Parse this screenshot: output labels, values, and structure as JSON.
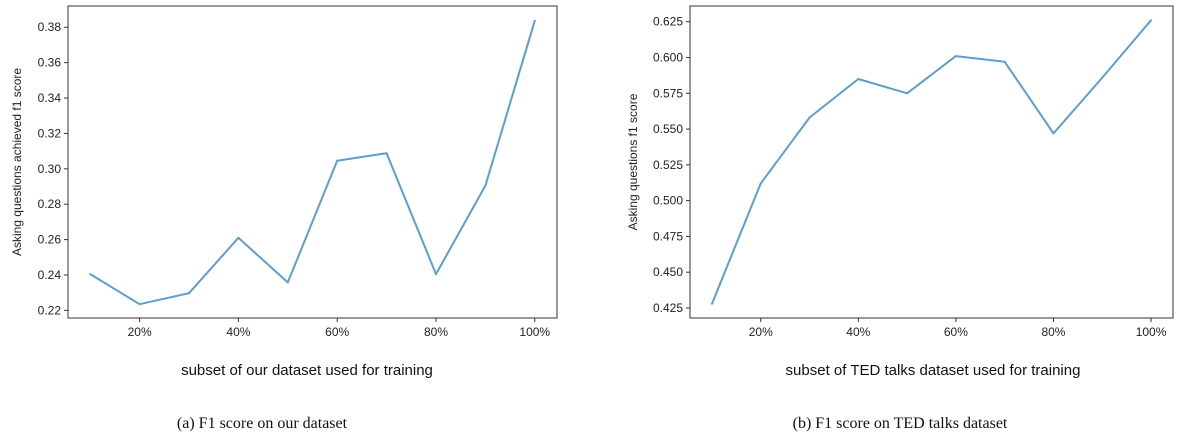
{
  "chart_data": [
    {
      "type": "line",
      "x": [
        10,
        20,
        30,
        40,
        50,
        60,
        70,
        80,
        90,
        100
      ],
      "series": [
        {
          "values": [
            0.2405,
            0.2235,
            0.2297,
            0.261,
            0.2358,
            0.3045,
            0.3088,
            0.2405,
            0.2905,
            0.3837
          ]
        }
      ],
      "xticks": [
        20,
        40,
        60,
        80,
        100
      ],
      "xtick_labels": [
        "20%",
        "40%",
        "60%",
        "80%",
        "100%"
      ],
      "yticks": [
        0.22,
        0.24,
        0.26,
        0.28,
        0.3,
        0.32,
        0.34,
        0.36,
        0.38
      ],
      "ytick_labels": [
        "0.22",
        "0.24",
        "0.26",
        "0.28",
        "0.30",
        "0.32",
        "0.34",
        "0.36",
        "0.38"
      ],
      "xlim": [
        5.5,
        104.5
      ],
      "ylim": [
        0.2157,
        0.392
      ],
      "xlabel": "subset of our dataset used for training",
      "ylabel": "Asking questions achieved f1 score",
      "caption": "(a) F1 score on our dataset",
      "grid": false,
      "line_color": "#5a9fd0"
    },
    {
      "type": "line",
      "x": [
        10,
        20,
        30,
        40,
        50,
        60,
        70,
        80,
        90,
        100
      ],
      "series": [
        {
          "values": [
            0.428,
            0.512,
            0.558,
            0.585,
            0.575,
            0.601,
            0.597,
            0.547,
            0.586,
            0.626
          ]
        }
      ],
      "xticks": [
        20,
        40,
        60,
        80,
        100
      ],
      "xtick_labels": [
        "20%",
        "40%",
        "60%",
        "80%",
        "100%"
      ],
      "yticks": [
        0.425,
        0.45,
        0.475,
        0.5,
        0.525,
        0.55,
        0.575,
        0.6,
        0.625
      ],
      "ytick_labels": [
        "0.425",
        "0.450",
        "0.475",
        "0.500",
        "0.525",
        "0.550",
        "0.575",
        "0.600",
        "0.625"
      ],
      "xlim": [
        5.5,
        104.5
      ],
      "ylim": [
        0.418,
        0.636
      ],
      "xlabel": "subset of TED talks dataset used for training",
      "ylabel": "Asking questions f1 score",
      "caption": "(b) F1 score on TED talks dataset",
      "grid": false,
      "line_color": "#5a9fd0"
    }
  ]
}
